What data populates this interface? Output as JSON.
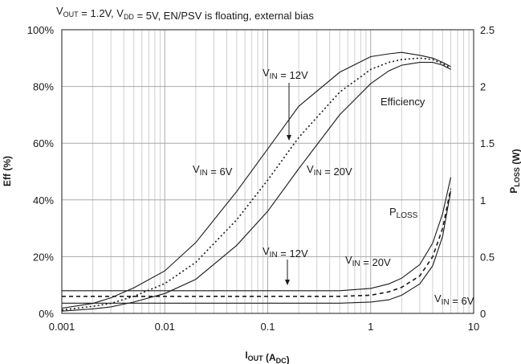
{
  "chart_data": {
    "type": "line",
    "title": "V_OUT = 1.2V, V_DD = 5V, EN/PSV is floating, external bias",
    "xlabel": "I_OUT (A_DC)",
    "ylabel_left": "Eff (%)",
    "ylabel_right": "P_LOSS (W)",
    "x_scale": "log",
    "xlim": [
      0.001,
      10
    ],
    "ylim_left": [
      0,
      100
    ],
    "ylim_right": [
      0,
      2.5
    ],
    "x_ticks": [
      "0.001",
      "0.01",
      "0.1",
      "1",
      "10"
    ],
    "y_left_ticks": [
      "0%",
      "20%",
      "40%",
      "60%",
      "80%",
      "100%"
    ],
    "y_right_ticks": [
      "0",
      "0.5",
      "1",
      "1.5",
      "2",
      "2.5"
    ],
    "grid": true,
    "efficiency_series": [
      {
        "name": "V_IN = 6V",
        "style": "solid",
        "x": [
          0.001,
          0.002,
          0.003,
          0.005,
          0.01,
          0.02,
          0.05,
          0.1,
          0.2,
          0.5,
          1,
          1.5,
          2,
          3,
          4,
          5,
          6
        ],
        "y": [
          1.8,
          3.5,
          5.5,
          9,
          15,
          25,
          43,
          58,
          73,
          85,
          90.5,
          91.5,
          92,
          91,
          90,
          88.5,
          87
        ]
      },
      {
        "name": "V_IN = 12V",
        "style": "dotted",
        "x": [
          0.001,
          0.002,
          0.003,
          0.005,
          0.01,
          0.02,
          0.05,
          0.1,
          0.2,
          0.5,
          1,
          1.5,
          2,
          3,
          4,
          5,
          6
        ],
        "y": [
          1.2,
          2.5,
          3.5,
          6,
          10.5,
          18,
          33,
          47,
          62,
          78,
          86,
          88.5,
          89.5,
          90,
          89.5,
          88,
          86.5
        ]
      },
      {
        "name": "V_IN = 20V",
        "style": "solid",
        "x": [
          0.001,
          0.002,
          0.003,
          0.005,
          0.01,
          0.02,
          0.05,
          0.1,
          0.2,
          0.5,
          1,
          1.5,
          2,
          3,
          4,
          5,
          6
        ],
        "y": [
          0.8,
          1.6,
          2.3,
          4,
          7,
          12,
          24,
          36,
          51,
          70,
          81,
          85.5,
          87.5,
          88.5,
          88.5,
          87.5,
          86
        ]
      }
    ],
    "ploss_series": [
      {
        "name": "V_IN = 6V",
        "style": "solid",
        "x": [
          0.001,
          0.01,
          0.1,
          0.5,
          1,
          1.5,
          2,
          3,
          4,
          5,
          6
        ],
        "y": [
          0.09,
          0.09,
          0.09,
          0.09,
          0.1,
          0.12,
          0.16,
          0.26,
          0.42,
          0.68,
          1.08
        ]
      },
      {
        "name": "V_IN = 12V",
        "style": "dashed",
        "x": [
          0.001,
          0.01,
          0.1,
          0.5,
          1,
          1.5,
          2,
          3,
          4,
          5,
          6
        ],
        "y": [
          0.15,
          0.15,
          0.15,
          0.15,
          0.16,
          0.19,
          0.23,
          0.33,
          0.5,
          0.75,
          1.1
        ]
      },
      {
        "name": "V_IN = 20V",
        "style": "solid",
        "x": [
          0.001,
          0.01,
          0.1,
          0.5,
          1,
          1.5,
          2,
          3,
          4,
          5,
          6
        ],
        "y": [
          0.2,
          0.2,
          0.2,
          0.2,
          0.22,
          0.26,
          0.31,
          0.43,
          0.62,
          0.88,
          1.2
        ]
      }
    ],
    "annotations": {
      "eff_vin12": "V_IN = 12V",
      "eff_label": "Efficiency",
      "eff_vin6": "V_IN = 6V",
      "eff_vin20": "V_IN = 20V",
      "ploss_label": "P_LOSS",
      "ploss_vin12": "V_IN = 12V",
      "ploss_vin20": "V_IN = 20V",
      "ploss_vin6": "V_IN = 6V"
    }
  }
}
